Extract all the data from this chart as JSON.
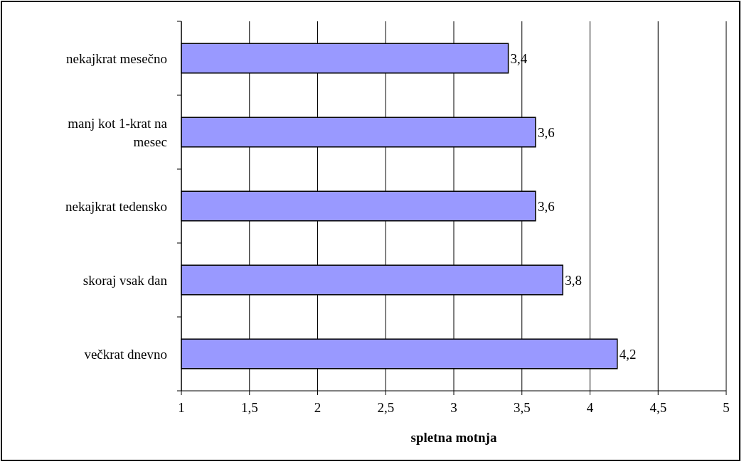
{
  "chart_data": {
    "type": "bar",
    "orientation": "horizontal",
    "xlabel": "spletna motnja",
    "categories": [
      "nekajkrat mesečno",
      "manj kot 1-krat na mesec",
      "nekajkrat tedensko",
      "skoraj vsak dan",
      "večkrat dnevno"
    ],
    "values": [
      3.4,
      3.6,
      3.6,
      3.8,
      4.2
    ],
    "value_labels": [
      "3,4",
      "3,6",
      "3,6",
      "3,8",
      "4,2"
    ],
    "color": "#9999ff",
    "xlim": [
      1,
      5
    ],
    "xticks": [
      1,
      {
        "value": 1.5,
        "label": "1,5"
      },
      2,
      {
        "value": 2.5,
        "label": "2,5"
      },
      3,
      {
        "value": 3.5,
        "label": "3,5"
      },
      4,
      {
        "value": 4.5,
        "label": "4,5"
      },
      5
    ],
    "grid": "x"
  }
}
